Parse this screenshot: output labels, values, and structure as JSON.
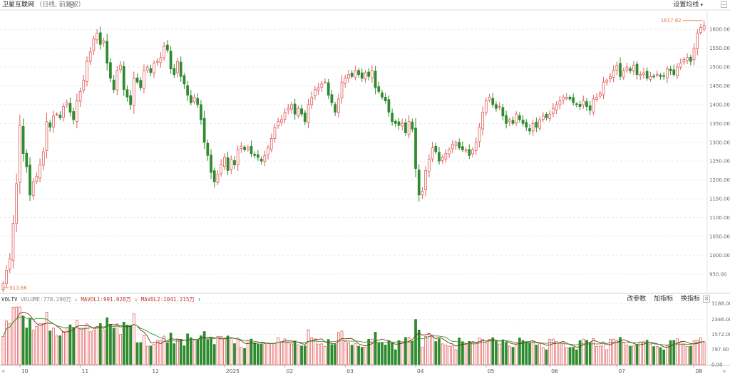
{
  "header": {
    "title": "卫星互联网",
    "subtitle": "（日线, 前复权）",
    "ma_settings": "设置均线"
  },
  "volume_panel": {
    "name": "VOLTV",
    "label1": "VOLUME:",
    "value1": "778.290万",
    "label2": "MAVOL1:",
    "value2": "991.028万",
    "label3": "MAVOL2:",
    "value3": "1041.215万",
    "tools": [
      "改参数",
      "加指标",
      "换指标"
    ],
    "close_symbol": "✕"
  },
  "colors": {
    "up": "#e25c5c",
    "down": "#2e8b2e",
    "ma1": "#7a2b10",
    "ma2": "#2e9a2e",
    "grid": "#e9e9e9"
  },
  "nav": {
    "left": "«",
    "right": "»"
  },
  "chart_data": [
    {
      "type": "candlestick",
      "y_ticks": [
        "950.00",
        "1000.00",
        "1050.00",
        "1100.00",
        "1150.00",
        "1200.00",
        "1250.00",
        "1300.00",
        "1350.00",
        "1400.00",
        "1450.00",
        "1500.00",
        "1550.00",
        "1600.00"
      ],
      "ylim": [
        913.66,
        1625
      ],
      "grid": true,
      "x_ticks": [
        "10",
        "11",
        "12",
        "2025",
        "02",
        "03",
        "04",
        "05",
        "06",
        "07",
        "08"
      ],
      "annotations": {
        "max": "1617.82",
        "min": "913.66"
      },
      "x": [
        "2024-09-24",
        "2024-09-25",
        "2024-09-26",
        "2024-09-27",
        "2024-09-30",
        "2024-10-08",
        "2024-10-09",
        "2024-10-10",
        "2024-10-11",
        "2024-10-14",
        "2024-10-15",
        "2024-10-16",
        "2024-10-17",
        "2024-10-18",
        "2024-10-21",
        "2024-10-22",
        "2024-10-23",
        "2024-10-24",
        "2024-10-25",
        "2024-10-28",
        "2024-10-29",
        "2024-10-30",
        "2024-10-31",
        "2024-11-01",
        "2024-11-04",
        "2024-11-05",
        "2024-11-06",
        "2024-11-07",
        "2024-11-08",
        "2024-11-11",
        "2024-11-12",
        "2024-11-13",
        "2024-11-14",
        "2024-11-15",
        "2024-11-18",
        "2024-11-19",
        "2024-11-20",
        "2024-11-21",
        "2024-11-22",
        "2024-11-25",
        "2024-11-26",
        "2024-11-27",
        "2024-11-28",
        "2024-11-29",
        "2024-12-02",
        "2024-12-03",
        "2024-12-04",
        "2024-12-05",
        "2024-12-06",
        "2024-12-09",
        "2024-12-10",
        "2024-12-11",
        "2024-12-12",
        "2024-12-13",
        "2024-12-16",
        "2024-12-17",
        "2024-12-18",
        "2024-12-19",
        "2024-12-20",
        "2024-12-23",
        "2024-12-24",
        "2024-12-25",
        "2024-12-26",
        "2024-12-27",
        "2024-12-30",
        "2024-12-31",
        "2025-01-02",
        "2025-01-03",
        "2025-01-06",
        "2025-01-07",
        "2025-01-08",
        "2025-01-09",
        "2025-01-10",
        "2025-01-13",
        "2025-01-14",
        "2025-01-15",
        "2025-01-16",
        "2025-01-17",
        "2025-01-20",
        "2025-01-21",
        "2025-01-22",
        "2025-01-23",
        "2025-01-24",
        "2025-01-27",
        "2025-02-05",
        "2025-02-06",
        "2025-02-07",
        "2025-02-10",
        "2025-02-11",
        "2025-02-12",
        "2025-02-13",
        "2025-02-14",
        "2025-02-17",
        "2025-02-18",
        "2025-02-19",
        "2025-02-20",
        "2025-02-21",
        "2025-02-24",
        "2025-02-25",
        "2025-02-26",
        "2025-02-27",
        "2025-02-28",
        "2025-03-03",
        "2025-03-04",
        "2025-03-05",
        "2025-03-06",
        "2025-03-07",
        "2025-03-10",
        "2025-03-11",
        "2025-03-12",
        "2025-03-13",
        "2025-03-14",
        "2025-03-17",
        "2025-03-18",
        "2025-03-19",
        "2025-03-20",
        "2025-03-21",
        "2025-03-24",
        "2025-03-25",
        "2025-03-26",
        "2025-03-27",
        "2025-03-28",
        "2025-03-31",
        "2025-04-01",
        "2025-04-02",
        "2025-04-03",
        "2025-04-07",
        "2025-04-08",
        "2025-04-09",
        "2025-04-10",
        "2025-04-11",
        "2025-04-14",
        "2025-04-15",
        "2025-04-16",
        "2025-04-17",
        "2025-04-18",
        "2025-04-21",
        "2025-04-22",
        "2025-04-23",
        "2025-04-24",
        "2025-04-25",
        "2025-04-28",
        "2025-04-29",
        "2025-04-30",
        "2025-05-06",
        "2025-05-07",
        "2025-05-08",
        "2025-05-09",
        "2025-05-12",
        "2025-05-13",
        "2025-05-14",
        "2025-05-15",
        "2025-05-16",
        "2025-05-19",
        "2025-05-20",
        "2025-05-21",
        "2025-05-22",
        "2025-05-23",
        "2025-05-26",
        "2025-05-27",
        "2025-05-28",
        "2025-05-29",
        "2025-05-30",
        "2025-06-03",
        "2025-06-04",
        "2025-06-05",
        "2025-06-06",
        "2025-06-09",
        "2025-06-10",
        "2025-06-11",
        "2025-06-12",
        "2025-06-13",
        "2025-06-16",
        "2025-06-17",
        "2025-06-18",
        "2025-06-19",
        "2025-06-20",
        "2025-06-23",
        "2025-06-24",
        "2025-06-25",
        "2025-06-26",
        "2025-06-27",
        "2025-06-30",
        "2025-07-01",
        "2025-07-02",
        "2025-07-03",
        "2025-07-04",
        "2025-07-07",
        "2025-07-08",
        "2025-07-09",
        "2025-07-10",
        "2025-07-11",
        "2025-07-14",
        "2025-07-15",
        "2025-07-16",
        "2025-07-17",
        "2025-07-18",
        "2025-07-21",
        "2025-07-22",
        "2025-07-23",
        "2025-07-24",
        "2025-07-25",
        "2025-07-28",
        "2025-07-29",
        "2025-07-30",
        "2025-07-31",
        "2025-08-01",
        "2025-08-04",
        "2025-08-05",
        "2025-08-06"
      ],
      "close": [
        925,
        960,
        990,
        1085,
        1190,
        1345,
        1270,
        1235,
        1160,
        1195,
        1210,
        1240,
        1275,
        1355,
        1340,
        1370,
        1375,
        1365,
        1395,
        1405,
        1380,
        1360,
        1410,
        1435,
        1465,
        1515,
        1540,
        1575,
        1590,
        1560,
        1570,
        1510,
        1470,
        1440,
        1490,
        1505,
        1440,
        1420,
        1400,
        1470,
        1460,
        1445,
        1490,
        1500,
        1485,
        1510,
        1515,
        1525,
        1555,
        1545,
        1495,
        1480,
        1515,
        1475,
        1455,
        1425,
        1405,
        1420,
        1400,
        1360,
        1300,
        1265,
        1220,
        1195,
        1215,
        1240,
        1260,
        1225,
        1255,
        1240,
        1280,
        1290,
        1280,
        1285,
        1270,
        1265,
        1260,
        1250,
        1265,
        1285,
        1310,
        1340,
        1355,
        1360,
        1380,
        1390,
        1400,
        1375,
        1390,
        1375,
        1355,
        1400,
        1420,
        1440,
        1445,
        1455,
        1460,
        1425,
        1405,
        1380,
        1415,
        1460,
        1470,
        1480,
        1475,
        1490,
        1480,
        1470,
        1485,
        1475,
        1490,
        1445,
        1435,
        1420,
        1410,
        1380,
        1355,
        1350,
        1345,
        1350,
        1325,
        1355,
        1335,
        1230,
        1160,
        1170,
        1225,
        1255,
        1285,
        1275,
        1250,
        1260,
        1270,
        1280,
        1295,
        1300,
        1285,
        1280,
        1280,
        1265,
        1280,
        1300,
        1340,
        1380,
        1410,
        1420,
        1400,
        1390,
        1395,
        1370,
        1350,
        1360,
        1350,
        1375,
        1360,
        1350,
        1340,
        1330,
        1350,
        1340,
        1360,
        1370,
        1365,
        1375,
        1390,
        1400,
        1410,
        1420,
        1420,
        1415,
        1405,
        1400,
        1395,
        1410,
        1395,
        1385,
        1415,
        1420,
        1430,
        1460,
        1465,
        1475,
        1490,
        1505,
        1475,
        1490,
        1500,
        1490,
        1505,
        1480,
        1480,
        1485,
        1470,
        1475,
        1475,
        1480,
        1475,
        1475,
        1495,
        1490,
        1480,
        1500,
        1510,
        1520,
        1525,
        1515,
        1550,
        1590,
        1605,
        1610
      ]
    },
    {
      "type": "bar",
      "name": "VOLTV",
      "y_ticks": [
        "0.00",
        "797.00",
        "1572.00",
        "2346.00",
        "3188.00"
      ],
      "ylim": [
        0,
        3188
      ],
      "series_names": [
        "VOLUME",
        "MAVOL1",
        "MAVOL2"
      ]
    }
  ]
}
